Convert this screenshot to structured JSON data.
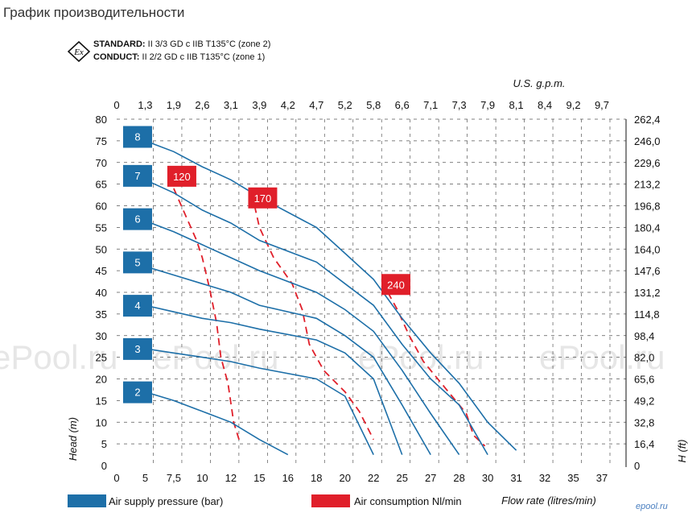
{
  "page": {
    "title": "График производительности"
  },
  "standards": {
    "ex_icon_label": "Ex",
    "standard_label": "STANDARD:",
    "standard_text": "II 3/3 GD c IIB T135°C (zone 2)",
    "conduct_label": "CONDUCT:",
    "conduct_text": "II 2/2 GD c IIB T135°C (zone 1)"
  },
  "watermarks": [
    "ePool.ru",
    "ePool.ru",
    "ePool.ru",
    "ePool.ru"
  ],
  "corner_mark": "epool.ru",
  "colors": {
    "pressure_curve": "#1d6fa8",
    "pressure_box": "#1d6fa8",
    "air_curve": "#e01f2a",
    "air_box": "#e01f2a",
    "grid": "#555555"
  },
  "chart_data": {
    "type": "line",
    "xlabel": "Flow rate (litres/min)",
    "ylabel": "Head (m)",
    "x2label": "U.S. g.p.m.",
    "y2label": "H (ft)",
    "xlim": [
      0,
      37
    ],
    "ylim": [
      0,
      80
    ],
    "x_ticks": [
      "0",
      "5",
      "7,5",
      "10",
      "12",
      "15",
      "16",
      "18",
      "20",
      "22",
      "25",
      "27",
      "28",
      "30",
      "31",
      "32",
      "35",
      "37"
    ],
    "x_top_ticks": [
      "0",
      "1,3",
      "1,9",
      "2,6",
      "3,1",
      "3,9",
      "4,2",
      "4,7",
      "5,2",
      "5,8",
      "6,6",
      "7,1",
      "7,3",
      "7,9",
      "8,1",
      "8,4",
      "9,2",
      "9,7"
    ],
    "y_ticks": [
      "0",
      "5",
      "10",
      "15",
      "20",
      "25",
      "30",
      "35",
      "40",
      "45",
      "50",
      "55",
      "60",
      "65",
      "70",
      "75",
      "80"
    ],
    "y_right_ticks": [
      "0",
      "16,4",
      "32,8",
      "49,2",
      "65,6",
      "82,0",
      "98,4",
      "114,8",
      "131,2",
      "147,6",
      "164,0",
      "180,4",
      "196,8",
      "213,2",
      "229,6",
      "246,0",
      "262,4"
    ],
    "grid": true,
    "legend": [
      {
        "label": "Air supply pressure (bar)",
        "kind": "pressure"
      },
      {
        "label": "Air consumption Nl/min",
        "kind": "air"
      }
    ],
    "pressure_series": [
      {
        "name": "2",
        "label_at": 17,
        "points": [
          [
            5,
            17
          ],
          [
            7.5,
            15
          ],
          [
            10,
            12.5
          ],
          [
            12,
            10
          ],
          [
            15,
            6
          ],
          [
            16,
            2.5
          ]
        ]
      },
      {
        "name": "3",
        "label_at": 27,
        "points": [
          [
            5,
            27
          ],
          [
            7.5,
            26
          ],
          [
            10,
            25
          ],
          [
            12,
            24
          ],
          [
            15,
            22.5
          ],
          [
            18,
            20
          ],
          [
            20,
            16
          ],
          [
            22,
            2.5
          ]
        ]
      },
      {
        "name": "4",
        "label_at": 37,
        "points": [
          [
            5,
            37
          ],
          [
            7.5,
            35.5
          ],
          [
            10,
            34
          ],
          [
            12,
            33
          ],
          [
            15,
            31.5
          ],
          [
            18,
            29
          ],
          [
            20,
            26
          ],
          [
            22,
            20
          ],
          [
            25,
            2.5
          ]
        ]
      },
      {
        "name": "5",
        "label_at": 47,
        "points": [
          [
            5,
            46
          ],
          [
            7.5,
            44
          ],
          [
            10,
            42
          ],
          [
            12,
            40
          ],
          [
            15,
            37
          ],
          [
            18,
            34
          ],
          [
            20,
            30
          ],
          [
            22,
            25
          ],
          [
            25,
            14
          ],
          [
            27,
            2.5
          ]
        ]
      },
      {
        "name": "6",
        "label_at": 57,
        "points": [
          [
            5,
            56.5
          ],
          [
            7.5,
            54
          ],
          [
            10,
            51
          ],
          [
            12,
            48
          ],
          [
            15,
            45
          ],
          [
            18,
            40
          ],
          [
            20,
            36
          ],
          [
            22,
            31
          ],
          [
            25,
            22
          ],
          [
            27,
            12
          ],
          [
            28,
            2.5
          ]
        ]
      },
      {
        "name": "7",
        "label_at": 67,
        "points": [
          [
            5,
            66
          ],
          [
            7.5,
            63
          ],
          [
            10,
            59
          ],
          [
            12,
            56
          ],
          [
            15,
            52
          ],
          [
            18,
            47
          ],
          [
            20,
            42
          ],
          [
            22,
            37
          ],
          [
            25,
            28
          ],
          [
            27,
            20
          ],
          [
            28,
            14
          ],
          [
            30,
            2.5
          ]
        ]
      },
      {
        "name": "8",
        "label_at": 76,
        "points": [
          [
            5,
            75
          ],
          [
            7.5,
            72.5
          ],
          [
            10,
            69
          ],
          [
            12,
            66
          ],
          [
            15,
            62
          ],
          [
            18,
            55
          ],
          [
            20,
            49
          ],
          [
            22,
            43
          ],
          [
            25,
            34
          ],
          [
            27,
            26
          ],
          [
            28,
            19
          ],
          [
            30,
            10
          ],
          [
            31,
            3.5
          ]
        ]
      }
    ],
    "air_series": [
      {
        "name": "120",
        "label_at": [
          7.5,
          67
        ],
        "points": [
          [
            7.5,
            64
          ],
          [
            8.5,
            58
          ],
          [
            9.5,
            52
          ],
          [
            10,
            48
          ],
          [
            10.5,
            41
          ],
          [
            11,
            33
          ],
          [
            11.3,
            25
          ],
          [
            11.8,
            19
          ],
          [
            12.3,
            10
          ],
          [
            13,
            5
          ]
        ]
      },
      {
        "name": "170",
        "label_at": [
          14.5,
          62
        ],
        "points": [
          [
            14.5,
            60
          ],
          [
            15,
            55
          ],
          [
            15.5,
            48
          ],
          [
            16.3,
            42
          ],
          [
            17,
            36
          ],
          [
            17.5,
            28
          ],
          [
            18.5,
            22
          ],
          [
            20,
            17
          ],
          [
            21,
            12.5
          ],
          [
            22,
            6
          ]
        ]
      },
      {
        "name": "240",
        "label_at": [
          23.5,
          42
        ],
        "points": [
          [
            23.5,
            40
          ],
          [
            24.5,
            36
          ],
          [
            25.5,
            30
          ],
          [
            26.5,
            24
          ],
          [
            27.5,
            18
          ],
          [
            28.5,
            12
          ],
          [
            29,
            7
          ],
          [
            29.8,
            4.5
          ]
        ]
      }
    ]
  }
}
